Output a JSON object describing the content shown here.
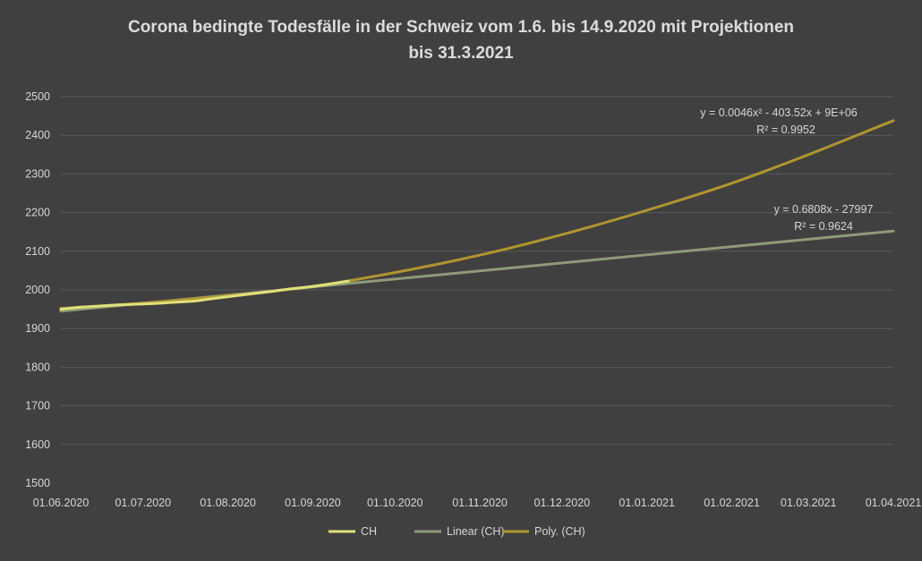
{
  "chart_data": {
    "type": "line",
    "title": "Corona bedingte Todesfälle in der Schweiz vom 1.6. bis 14.9.2020 mit Projektionen",
    "title_line2": "bis 31.3.2021",
    "ylim": [
      1500,
      2500
    ],
    "ytick_labels": [
      "1500",
      "1600",
      "1700",
      "1800",
      "1900",
      "2000",
      "2100",
      "2200",
      "2300",
      "2400",
      "2500"
    ],
    "xtick_labels": [
      "01.06.2020",
      "01.07.2020",
      "01.08.2020",
      "01.09.2020",
      "01.10.2020",
      "01.11.2020",
      "01.12.2020",
      "01.01.2021",
      "01.02.2021",
      "01.03.2021",
      "01.04.2021"
    ],
    "grid": true,
    "legend_position": "bottom",
    "series": [
      {
        "name": "CH",
        "color": "#e0e07a",
        "x": [
          "01.06.2020",
          "08.06.2020",
          "15.06.2020",
          "22.06.2020",
          "29.06.2020",
          "06.07.2020",
          "13.07.2020",
          "20.07.2020",
          "27.07.2020",
          "03.08.2020",
          "10.08.2020",
          "17.08.2020",
          "24.08.2020",
          "31.08.2020",
          "07.09.2020",
          "14.09.2020"
        ],
        "values": [
          1950,
          1955,
          1958,
          1961,
          1963,
          1965,
          1968,
          1971,
          1978,
          1984,
          1990,
          1996,
          2003,
          2008,
          2015,
          2023
        ]
      },
      {
        "name": "Linear (CH)",
        "color": "#8f9a78",
        "equation": "y = 0.6808x - 27997",
        "r2": "R² = 0.9624",
        "x": [
          "01.06.2020",
          "01.04.2021"
        ],
        "values": [
          1945,
          2152
        ]
      },
      {
        "name": "Poly. (CH)",
        "color": "#b09530",
        "equation": "y = 0.0046x² - 403.52x + 9E+06",
        "r2": "R² = 0.9952",
        "x": [
          "01.06.2020",
          "01.07.2020",
          "01.08.2020",
          "01.09.2020",
          "01.10.2020",
          "01.11.2020",
          "01.12.2020",
          "01.01.2021",
          "01.02.2021",
          "01.03.2021",
          "01.04.2021"
        ],
        "values": [
          1952,
          1966,
          1985,
          2009,
          2045,
          2090,
          2143,
          2206,
          2276,
          2350,
          2438
        ]
      }
    ]
  }
}
